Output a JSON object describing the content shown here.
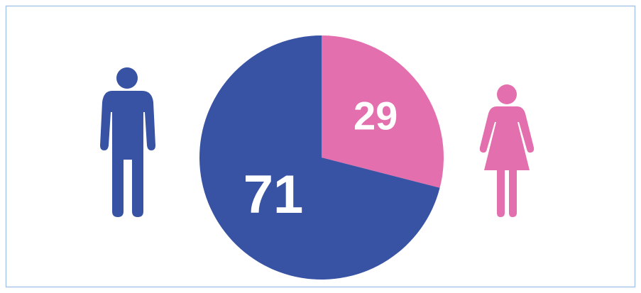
{
  "chart_data": {
    "type": "pie",
    "values": [
      29,
      71
    ],
    "colors": [
      "#e46fae",
      "#3853a4"
    ]
  }
}
